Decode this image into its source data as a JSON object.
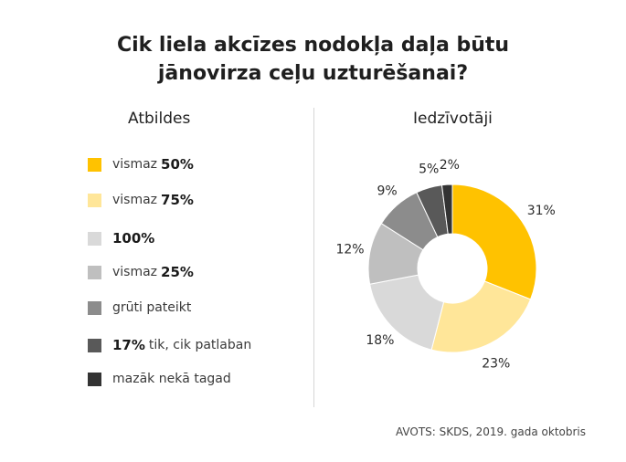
{
  "title": {
    "line1": "Cik liela akcīzes nodokļa daļa būtu",
    "line2": "jānovirza ceļu uzturēšanai?"
  },
  "legend_heading": "Atbildes",
  "chart_heading": "Iedzīvotāji",
  "legend": [
    {
      "pre": "vismaz",
      "bold": "50%",
      "post": "",
      "color": "#FFC200"
    },
    {
      "pre": "vismaz",
      "bold": "75%",
      "post": "",
      "color": "#FFE699"
    },
    {
      "pre": "",
      "bold": "100%",
      "post": "",
      "color": "#D9D9D9"
    },
    {
      "pre": "vismaz",
      "bold": "25%",
      "post": "",
      "color": "#BFBFBF"
    },
    {
      "pre": "grūti pateikt",
      "bold": "",
      "post": "",
      "color": "#8C8C8C"
    },
    {
      "pre": "",
      "bold": "17%",
      "post": "tik, cik patlaban",
      "color": "#595959"
    },
    {
      "pre": "mazāk nekā tagad",
      "bold": "",
      "post": "",
      "color": "#333333"
    }
  ],
  "chart_data": {
    "type": "pie",
    "title": "Cik liela akcīzes nodokļa daļa būtu jānovirza ceļu uzturēšanai?",
    "series_name": "Iedzīvotāji",
    "categories": [
      "vismaz 50%",
      "vismaz 75%",
      "100%",
      "vismaz 25%",
      "grūti pateikt",
      "17% tik, cik patlaban",
      "mazāk nekā tagad"
    ],
    "values": [
      31,
      23,
      18,
      12,
      9,
      5,
      2
    ],
    "labels": [
      "31%",
      "23%",
      "18%",
      "12%",
      "9%",
      "5%",
      "2%"
    ],
    "colors": [
      "#FFC200",
      "#FFE699",
      "#D9D9D9",
      "#BFBFBF",
      "#8C8C8C",
      "#595959",
      "#333333"
    ],
    "donut": true,
    "start": "12 o'clock",
    "direction": "clockwise",
    "legend_position": "left"
  },
  "source": "AVOTS: SKDS, 2019. gada oktobris"
}
